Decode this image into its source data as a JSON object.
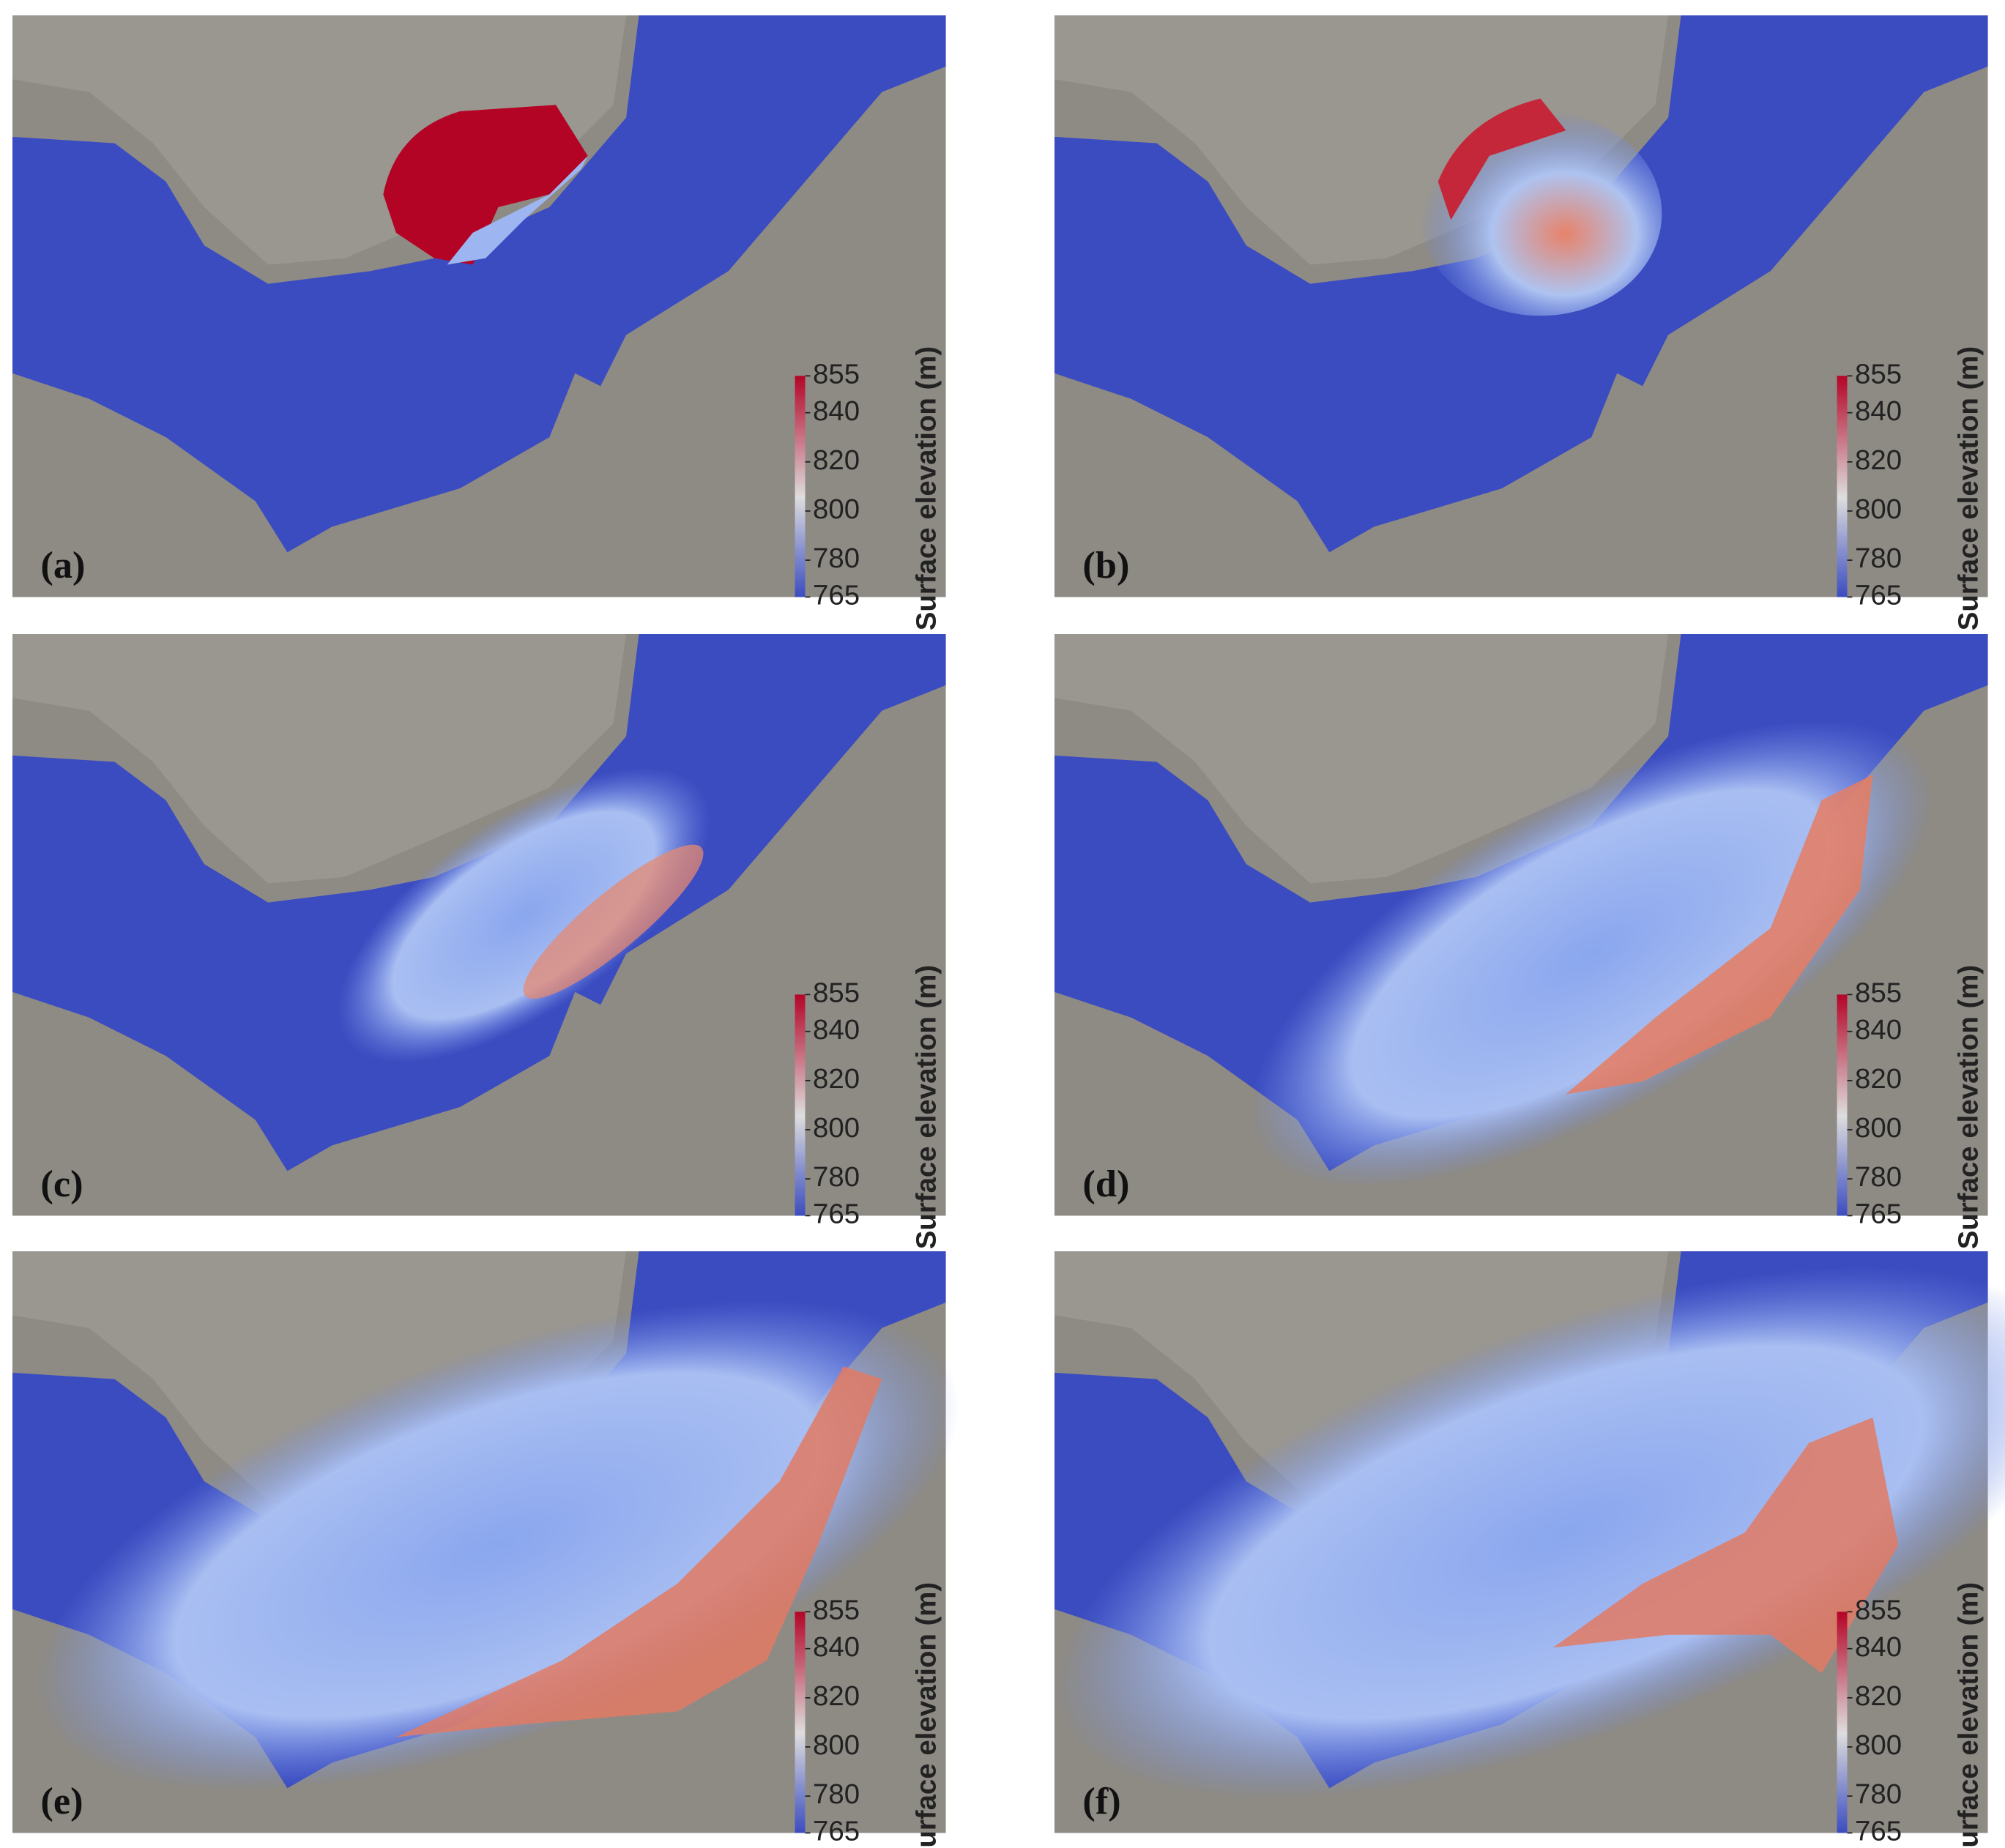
{
  "panels": [
    {
      "label": "(a)"
    },
    {
      "label": "(b)"
    },
    {
      "label": "(c)"
    },
    {
      "label": "(d)"
    },
    {
      "label": "(e)"
    },
    {
      "label": "(f)"
    }
  ],
  "colorbar": {
    "title": "Surface elevation (m)",
    "range": [
      765,
      855
    ],
    "ticks": [
      765,
      780,
      800,
      820,
      840,
      855
    ]
  }
}
